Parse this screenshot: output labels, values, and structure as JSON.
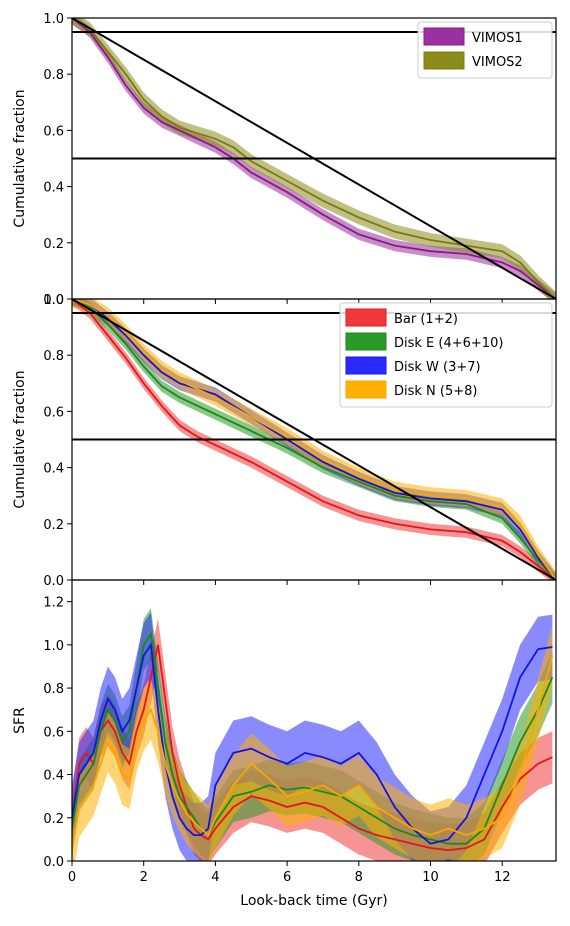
{
  "chart_data": [
    {
      "type": "line",
      "xlim": [
        0,
        13.5
      ],
      "ylim": [
        0,
        1.0
      ],
      "xticks": [
        0,
        2,
        4,
        6,
        8,
        10,
        12
      ],
      "xtick_labels": [
        "",
        "",
        "",
        "",
        "",
        "",
        ""
      ],
      "yticks": [
        0.0,
        0.2,
        0.4,
        0.6,
        0.8,
        1.0
      ],
      "ytick_labels": [
        "0.0",
        "0.2",
        "0.4",
        "0.6",
        "0.8",
        "1.0"
      ],
      "ylabel": "Cumulative fraction",
      "xlabel": "",
      "legend_position": "top-right",
      "hlines": [
        0.95,
        0.5
      ],
      "reference_line": {
        "x": [
          0,
          13.5
        ],
        "y": [
          1.0,
          0.0
        ],
        "color": "#000000"
      },
      "series": [
        {
          "name": "VIMOS1",
          "color": "#8b1a89",
          "band_color": "#9b30a0",
          "x": [
            0,
            0.5,
            1.0,
            1.5,
            2.0,
            2.5,
            3.0,
            3.5,
            4.0,
            4.5,
            5.0,
            6.0,
            7.0,
            8.0,
            9.0,
            10.0,
            11.0,
            12.0,
            12.5,
            13.0,
            13.5
          ],
          "y": [
            1.0,
            0.95,
            0.86,
            0.76,
            0.68,
            0.63,
            0.6,
            0.57,
            0.54,
            0.5,
            0.45,
            0.38,
            0.3,
            0.23,
            0.19,
            0.17,
            0.16,
            0.13,
            0.1,
            0.05,
            0.0
          ],
          "band": 0.02
        },
        {
          "name": "VIMOS2",
          "color": "#7b7b10",
          "band_color": "#8c8c1c",
          "x": [
            0,
            0.5,
            1.0,
            1.5,
            2.0,
            2.5,
            3.0,
            3.5,
            4.0,
            4.5,
            5.0,
            6.0,
            7.0,
            8.0,
            9.0,
            10.0,
            11.0,
            12.0,
            12.5,
            13.0,
            13.5
          ],
          "y": [
            1.0,
            0.96,
            0.88,
            0.8,
            0.71,
            0.65,
            0.61,
            0.59,
            0.57,
            0.54,
            0.49,
            0.42,
            0.35,
            0.29,
            0.24,
            0.21,
            0.19,
            0.17,
            0.13,
            0.06,
            0.0
          ],
          "band": 0.025
        }
      ]
    },
    {
      "type": "line",
      "xlim": [
        0,
        13.5
      ],
      "ylim": [
        0,
        1.0
      ],
      "xticks": [
        0,
        2,
        4,
        6,
        8,
        10,
        12
      ],
      "xtick_labels": [
        "",
        "",
        "",
        "",
        "",
        "",
        ""
      ],
      "yticks": [
        0.0,
        0.2,
        0.4,
        0.6,
        0.8,
        1.0
      ],
      "ytick_labels": [
        "0.0",
        "0.2",
        "0.4",
        "0.6",
        "0.8",
        "1.0"
      ],
      "ylabel": "Cumulative fraction",
      "xlabel": "",
      "legend_position": "top-right",
      "hlines": [
        0.95,
        0.5
      ],
      "reference_line": {
        "x": [
          0,
          13.5
        ],
        "y": [
          1.0,
          0.0
        ],
        "color": "#000000"
      },
      "series": [
        {
          "name": "Bar (1+2)",
          "color": "#e8141c",
          "band_color": "#ef3a3a",
          "x": [
            0,
            0.5,
            1.0,
            1.5,
            2.0,
            2.5,
            3.0,
            3.5,
            4.0,
            5.0,
            6.0,
            7.0,
            8.0,
            9.0,
            10.0,
            11.0,
            12.0,
            12.5,
            13.0,
            13.5
          ],
          "y": [
            1.0,
            0.95,
            0.87,
            0.79,
            0.7,
            0.62,
            0.55,
            0.51,
            0.48,
            0.42,
            0.35,
            0.28,
            0.23,
            0.2,
            0.18,
            0.17,
            0.14,
            0.1,
            0.05,
            0.0
          ],
          "band": 0.02
        },
        {
          "name": "Disk E (4+6+10)",
          "color": "#1a8a1a",
          "band_color": "#2a9a2a",
          "x": [
            0,
            0.5,
            1.0,
            1.5,
            2.0,
            2.5,
            3.0,
            3.5,
            4.0,
            5.0,
            6.0,
            7.0,
            8.0,
            9.0,
            10.0,
            11.0,
            12.0,
            12.5,
            13.0,
            13.5
          ],
          "y": [
            1.0,
            0.97,
            0.91,
            0.84,
            0.76,
            0.69,
            0.65,
            0.62,
            0.59,
            0.53,
            0.47,
            0.4,
            0.35,
            0.3,
            0.28,
            0.27,
            0.22,
            0.15,
            0.07,
            0.0
          ],
          "band": 0.02
        },
        {
          "name": "Disk W (3+7)",
          "color": "#1414e0",
          "band_color": "#2a2aff",
          "x": [
            0,
            0.5,
            1.0,
            1.5,
            2.0,
            2.5,
            3.0,
            3.5,
            4.0,
            5.0,
            6.0,
            7.0,
            8.0,
            9.0,
            10.0,
            11.0,
            12.0,
            12.5,
            13.0,
            13.5
          ],
          "y": [
            1.0,
            0.98,
            0.93,
            0.87,
            0.8,
            0.74,
            0.7,
            0.68,
            0.66,
            0.58,
            0.5,
            0.42,
            0.36,
            0.31,
            0.29,
            0.28,
            0.25,
            0.18,
            0.08,
            0.0
          ],
          "band": 0.025
        },
        {
          "name": "Disk N (5+8)",
          "color": "#f5a800",
          "band_color": "#ffb000",
          "x": [
            0,
            0.5,
            1.0,
            1.5,
            2.0,
            2.5,
            3.0,
            3.5,
            4.0,
            5.0,
            6.0,
            7.0,
            8.0,
            9.0,
            10.0,
            11.0,
            12.0,
            12.5,
            13.0,
            13.5
          ],
          "y": [
            1.0,
            0.98,
            0.94,
            0.88,
            0.81,
            0.75,
            0.71,
            0.68,
            0.65,
            0.58,
            0.51,
            0.43,
            0.37,
            0.32,
            0.3,
            0.29,
            0.26,
            0.2,
            0.09,
            0.0
          ],
          "band": 0.03
        }
      ]
    },
    {
      "type": "line",
      "xlim": [
        0,
        13.5
      ],
      "ylim": [
        0,
        1.3
      ],
      "xticks": [
        0,
        2,
        4,
        6,
        8,
        10,
        12
      ],
      "xtick_labels": [
        "0",
        "2",
        "4",
        "6",
        "8",
        "10",
        "12"
      ],
      "yticks": [
        0.0,
        0.2,
        0.4,
        0.6,
        0.8,
        1.0,
        1.2
      ],
      "ytick_labels": [
        "0.0",
        "0.2",
        "0.4",
        "0.6",
        "0.8",
        "1.0",
        "1.2"
      ],
      "ylabel": "SFR",
      "xlabel": "Look-back time (Gyr)",
      "series": [
        {
          "color": "#e8141c",
          "band_color": "#ef3a3a",
          "x": [
            0,
            0.2,
            0.4,
            0.6,
            0.8,
            1.0,
            1.2,
            1.4,
            1.6,
            1.8,
            2.0,
            2.2,
            2.4,
            2.6,
            2.8,
            3.0,
            3.2,
            3.4,
            3.6,
            3.8,
            4.0,
            4.5,
            5.0,
            5.5,
            6.0,
            6.5,
            7.0,
            7.5,
            8.0,
            8.5,
            9.0,
            9.5,
            10.0,
            10.5,
            11.0,
            11.5,
            12.0,
            12.5,
            13.0,
            13.4
          ],
          "y": [
            0.2,
            0.45,
            0.5,
            0.45,
            0.6,
            0.65,
            0.6,
            0.5,
            0.45,
            0.6,
            0.7,
            0.85,
            1.0,
            0.75,
            0.5,
            0.35,
            0.25,
            0.15,
            0.12,
            0.1,
            0.15,
            0.25,
            0.3,
            0.28,
            0.25,
            0.27,
            0.25,
            0.2,
            0.15,
            0.12,
            0.1,
            0.08,
            0.06,
            0.05,
            0.06,
            0.1,
            0.25,
            0.38,
            0.45,
            0.48
          ],
          "band": 0.12
        },
        {
          "color": "#1a8a1a",
          "band_color": "#2a9a2a",
          "x": [
            0,
            0.2,
            0.4,
            0.6,
            0.8,
            1.0,
            1.2,
            1.4,
            1.6,
            1.8,
            2.0,
            2.2,
            2.4,
            2.6,
            2.8,
            3.0,
            3.2,
            3.4,
            3.6,
            3.8,
            4.0,
            4.5,
            5.0,
            5.5,
            6.0,
            6.5,
            7.0,
            7.5,
            8.0,
            8.5,
            9.0,
            9.5,
            10.0,
            10.5,
            11.0,
            11.5,
            12.0,
            12.5,
            13.0,
            13.4
          ],
          "y": [
            0.15,
            0.35,
            0.4,
            0.45,
            0.6,
            0.7,
            0.65,
            0.55,
            0.6,
            0.8,
            1.0,
            1.05,
            0.8,
            0.55,
            0.4,
            0.3,
            0.25,
            0.2,
            0.15,
            0.12,
            0.18,
            0.3,
            0.32,
            0.35,
            0.33,
            0.34,
            0.32,
            0.3,
            0.25,
            0.2,
            0.15,
            0.12,
            0.1,
            0.08,
            0.08,
            0.15,
            0.35,
            0.55,
            0.7,
            0.85
          ],
          "band": 0.12
        },
        {
          "color": "#1414e0",
          "band_color": "#2a2aff",
          "x": [
            0,
            0.2,
            0.4,
            0.6,
            0.8,
            1.0,
            1.2,
            1.4,
            1.6,
            1.8,
            2.0,
            2.2,
            2.4,
            2.6,
            2.8,
            3.0,
            3.2,
            3.4,
            3.6,
            3.8,
            4.0,
            4.5,
            5.0,
            5.5,
            6.0,
            6.5,
            7.0,
            7.5,
            8.0,
            8.5,
            9.0,
            9.5,
            10.0,
            10.5,
            11.0,
            11.5,
            12.0,
            12.5,
            13.0,
            13.4
          ],
          "y": [
            0.2,
            0.4,
            0.45,
            0.5,
            0.65,
            0.75,
            0.7,
            0.6,
            0.65,
            0.8,
            0.95,
            1.0,
            0.7,
            0.45,
            0.3,
            0.2,
            0.15,
            0.12,
            0.12,
            0.15,
            0.35,
            0.5,
            0.52,
            0.48,
            0.45,
            0.5,
            0.48,
            0.45,
            0.5,
            0.4,
            0.25,
            0.15,
            0.08,
            0.1,
            0.2,
            0.4,
            0.6,
            0.85,
            0.98,
            0.99
          ],
          "band": 0.15
        },
        {
          "color": "#f5a800",
          "band_color": "#ffb000",
          "x": [
            0,
            0.2,
            0.4,
            0.6,
            0.8,
            1.0,
            1.2,
            1.4,
            1.6,
            1.8,
            2.0,
            2.2,
            2.4,
            2.6,
            2.8,
            3.0,
            3.2,
            3.4,
            3.6,
            3.8,
            4.0,
            4.5,
            5.0,
            5.5,
            6.0,
            6.5,
            7.0,
            7.5,
            8.0,
            8.5,
            9.0,
            9.5,
            10.0,
            10.5,
            11.0,
            11.5,
            12.0,
            12.5,
            13.0,
            13.4
          ],
          "y": [
            0.05,
            0.25,
            0.3,
            0.35,
            0.45,
            0.55,
            0.5,
            0.4,
            0.38,
            0.55,
            0.65,
            0.7,
            0.6,
            0.45,
            0.35,
            0.28,
            0.22,
            0.18,
            0.15,
            0.12,
            0.2,
            0.35,
            0.45,
            0.38,
            0.3,
            0.32,
            0.35,
            0.3,
            0.35,
            0.25,
            0.2,
            0.15,
            0.12,
            0.15,
            0.12,
            0.15,
            0.2,
            0.4,
            0.7,
            0.95
          ],
          "band": 0.14
        }
      ]
    }
  ]
}
